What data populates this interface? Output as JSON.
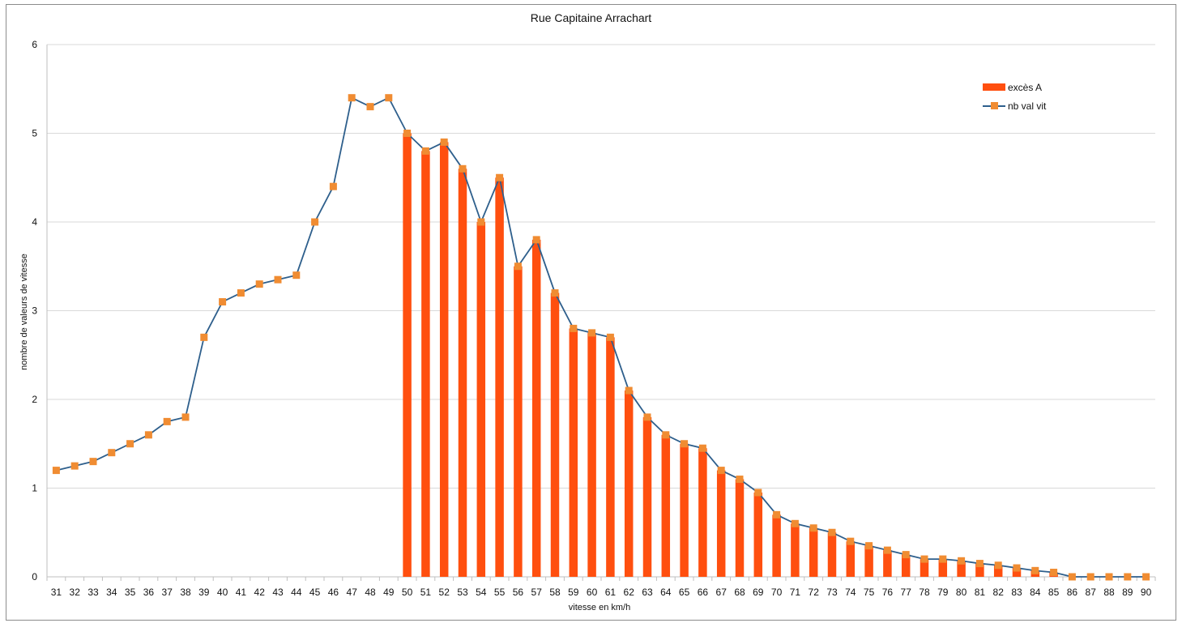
{
  "chart_data": {
    "type": "bar",
    "title": "Rue Capitaine Arrachart",
    "xlabel": "vitesse en km/h",
    "ylabel": "nombre de valeurs de vitesse",
    "ylim": [
      0,
      6
    ],
    "yticks": [
      "0",
      "1",
      "2",
      "3",
      "4",
      "5",
      "6"
    ],
    "grid": true,
    "legend_position": "top-right",
    "categories": [
      "31",
      "32",
      "33",
      "34",
      "35",
      "36",
      "37",
      "38",
      "39",
      "40",
      "41",
      "42",
      "43",
      "44",
      "45",
      "46",
      "47",
      "48",
      "49",
      "50",
      "51",
      "52",
      "53",
      "54",
      "55",
      "56",
      "57",
      "58",
      "59",
      "60",
      "61",
      "62",
      "63",
      "64",
      "65",
      "66",
      "67",
      "68",
      "69",
      "70",
      "71",
      "72",
      "73",
      "74",
      "75",
      "76",
      "77",
      "78",
      "79",
      "80",
      "81",
      "82",
      "83",
      "84",
      "85",
      "86",
      "87",
      "88",
      "89",
      "90"
    ],
    "series": [
      {
        "name": "excès A",
        "kind": "bar",
        "color": "#FF4F0F",
        "values": [
          0,
          0,
          0,
          0,
          0,
          0,
          0,
          0,
          0,
          0,
          0,
          0,
          0,
          0,
          0,
          0,
          0,
          0,
          0,
          5.0,
          4.8,
          4.9,
          4.6,
          4.0,
          4.5,
          3.5,
          3.8,
          3.2,
          2.8,
          2.75,
          2.7,
          2.1,
          1.8,
          1.6,
          1.5,
          1.45,
          1.2,
          1.1,
          0.95,
          0.7,
          0.6,
          0.55,
          0.5,
          0.4,
          0.35,
          0.3,
          0.25,
          0.2,
          0.2,
          0.18,
          0.15,
          0.13,
          0.1,
          0.07,
          0.05,
          0,
          0,
          0,
          0,
          0
        ]
      },
      {
        "name": "nb val vit",
        "kind": "line",
        "color": "#2E5F8C",
        "marker_color": "#F08C32",
        "values": [
          1.2,
          1.25,
          1.3,
          1.4,
          1.5,
          1.6,
          1.75,
          1.8,
          2.7,
          3.1,
          3.2,
          3.3,
          3.35,
          3.4,
          4.0,
          4.4,
          5.4,
          5.3,
          5.4,
          5.0,
          4.8,
          4.9,
          4.6,
          4.0,
          4.5,
          3.5,
          3.8,
          3.2,
          2.8,
          2.75,
          2.7,
          2.1,
          1.8,
          1.6,
          1.5,
          1.45,
          1.2,
          1.1,
          0.95,
          0.7,
          0.6,
          0.55,
          0.5,
          0.4,
          0.35,
          0.3,
          0.25,
          0.2,
          0.2,
          0.18,
          0.15,
          0.13,
          0.1,
          0.07,
          0.05,
          0,
          0,
          0,
          0,
          0
        ]
      }
    ]
  }
}
